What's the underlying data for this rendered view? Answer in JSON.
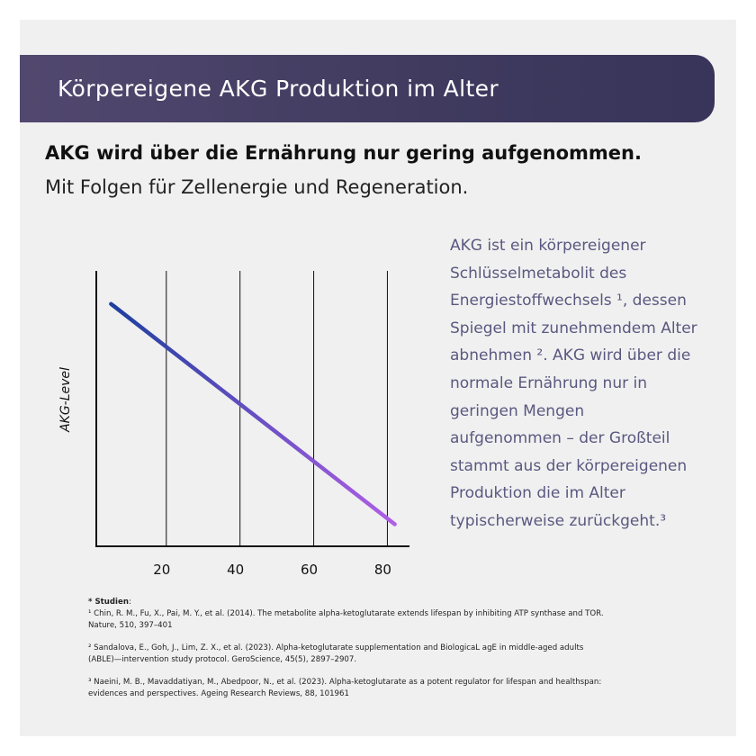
{
  "header": {
    "title": "Körpereigene AKG Produktion  im Alter"
  },
  "headline": "AKG wird über die Ernährung nur gering aufgenommen.",
  "subline": "Mit Folgen für Zellenergie und Regeneration.",
  "info_lines": [
    "AKG ist ein körpereigener",
    "Schlüsselmetabolit des",
    "Energiestoffwechsels ¹, dessen",
    "Spiegel mit zunehmendem Alter",
    "abnehmen ². AKG wird über die",
    "normale Ernährung nur in",
    "geringen Mengen",
    "aufgenommen – der Großteil",
    "stammt aus der körpereigenen",
    "Produktion die im Alter",
    "typischerweise zurückgeht.³"
  ],
  "studies": {
    "label": "* Studien",
    "suffix": ":",
    "refs": [
      {
        "lines": [
          "¹ Chin, R. M., Fu, X., Pai, M. Y., et al. (2014). The metabolite alpha-ketoglutarate extends lifespan by inhibiting ATP synthase and TOR.",
          "Nature, 510, 397–401"
        ]
      },
      {
        "lines": [
          "² Sandalova, E., Goh, J., Lim, Z. X., et al. (2023). Alpha-ketoglutarate supplementation and BiologicaL agE in middle-aged adults",
          "(ABLE)—intervention study protocol. GeroScience, 45(5), 2897–2907."
        ]
      },
      {
        "lines": [
          "³ Naeini, M. B., Mavaddatiyan, M., Abedpoor, N., et al. (2023). Alpha-ketoglutarate as a potent regulator for lifespan and healthspan:",
          "evidences and perspectives. Ageing Research Reviews, 88, 101961"
        ]
      }
    ]
  },
  "colors": {
    "banner": "#3f3a5e",
    "line_start": "#1d3f9e",
    "line_end": "#b05fe6",
    "info_text": "#5a5880"
  },
  "chart_data": {
    "type": "line",
    "title": "",
    "xlabel": "",
    "ylabel": "AKG-Level",
    "x_ticks": [
      20,
      40,
      60,
      80
    ],
    "xlim": [
      1,
      86
    ],
    "ylim": [
      0,
      100
    ],
    "y_ticks_shown": false,
    "grid": "vertical",
    "series": [
      {
        "x": [
          5,
          82
        ],
        "y": [
          88,
          8
        ]
      }
    ]
  }
}
